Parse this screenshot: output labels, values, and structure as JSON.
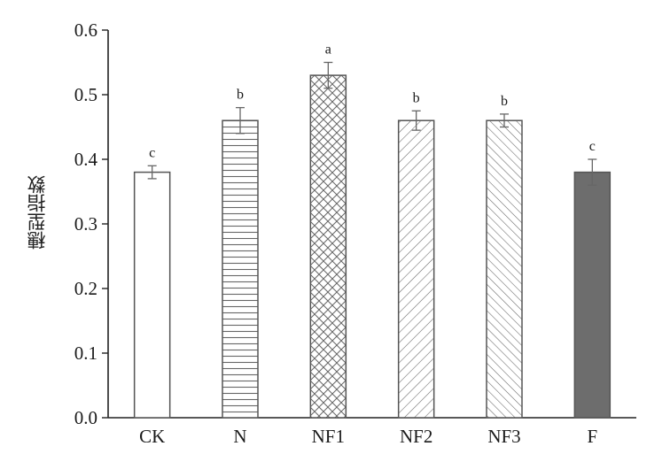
{
  "chart_data": {
    "type": "bar",
    "ylabel": "穗型指数",
    "xlabel": "",
    "ylim": [
      0,
      0.6
    ],
    "yticks": [
      "0.0",
      "0.1",
      "0.2",
      "0.3",
      "0.4",
      "0.5",
      "0.6"
    ],
    "categories": [
      "CK",
      "N",
      "NF1",
      "NF2",
      "NF3",
      "F"
    ],
    "values": [
      0.38,
      0.46,
      0.53,
      0.46,
      0.46,
      0.38
    ],
    "errors": [
      0.01,
      0.02,
      0.02,
      0.015,
      0.01,
      0.02
    ],
    "significance_letters": [
      "c",
      "b",
      "a",
      "b",
      "b",
      "c"
    ],
    "fill_patterns": [
      "none",
      "horizontal-lines",
      "crosshatch",
      "diagonal-forward",
      "diagonal-backward",
      "solid"
    ],
    "colors": {
      "stroke": "#555555",
      "solid_fill": "#6d6d6d",
      "pattern_line": "#666666"
    }
  }
}
